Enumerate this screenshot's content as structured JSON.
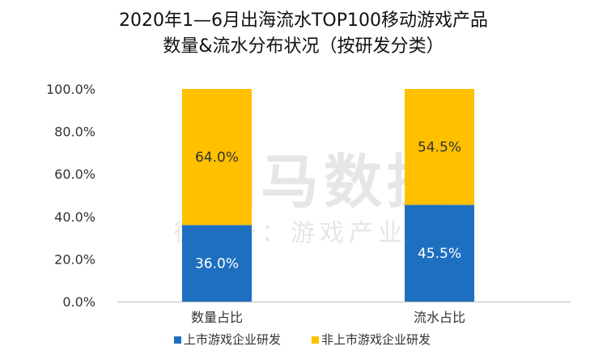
{
  "chart_data": {
    "type": "bar",
    "stacked": true,
    "title_lines": [
      "2020年1—6月出海流水TOP100移动游戏产品",
      "数量&流水分布状况（按研发分类）"
    ],
    "categories": [
      "数量占比",
      "流水占比"
    ],
    "series": [
      {
        "name": "上市游戏企业研发",
        "values": [
          36.0,
          45.5
        ],
        "labels": [
          "36.0%",
          "45.5%"
        ],
        "color": "#1F6FC0",
        "label_color": "#ffffff"
      },
      {
        "name": "非上市游戏企业研发",
        "values": [
          64.0,
          54.5
        ],
        "labels": [
          "64.0%",
          "54.5%"
        ],
        "color": "#FFC000",
        "label_color": "#333333"
      }
    ],
    "ylim": [
      0,
      100
    ],
    "y_ticks": [
      0,
      20,
      40,
      60,
      80,
      100
    ],
    "y_tick_labels": [
      "0.0%",
      "20.0%",
      "40.0%",
      "60.0%",
      "80.0%",
      "100.0%"
    ],
    "grid": false,
    "legend_position": "bottom-center",
    "watermark": [
      "伽马数据",
      "微信号：游戏产业报告"
    ]
  }
}
